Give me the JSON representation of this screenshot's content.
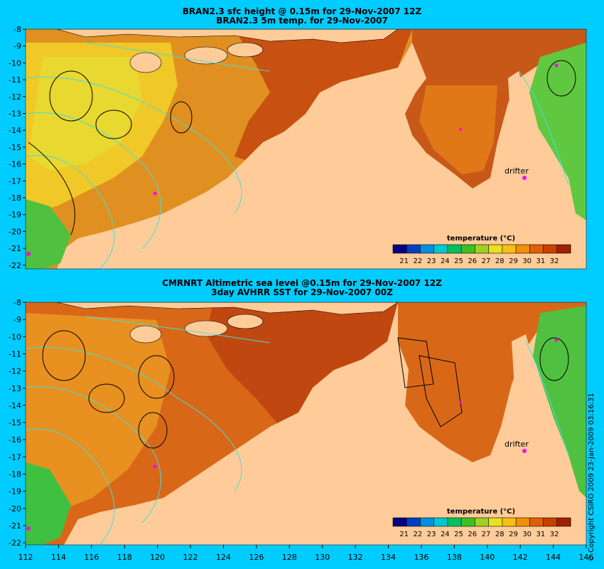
{
  "top_panel": {
    "title_line1": "BRAN2.3 sfc height @ 0.15m for 29-Nov-2007 12Z",
    "title_line2": "BRAN2.3 5m temp. for 29-Nov-2007",
    "drifter_label": "drifter",
    "legend_title": "temperature (°C)"
  },
  "bottom_panel": {
    "title_line1": "CMRNRT Altimetric sea level  @0.15m  for 29-Nov-2007 12Z",
    "title_line2": "3day AVHRR SST for 29-Nov-2007 00Z",
    "drifter_label": "drifter",
    "legend_title": "temperature (°C)"
  },
  "y_ticks": [
    "-8",
    "-9",
    "-10",
    "-11",
    "-12",
    "-13",
    "-14",
    "-15",
    "-16",
    "-17",
    "-18",
    "-19",
    "-20",
    "-21",
    "-22"
  ],
  "x_ticks": [
    "112",
    "114",
    "116",
    "118",
    "120",
    "122",
    "124",
    "126",
    "128",
    "130",
    "132",
    "134",
    "136",
    "138",
    "140",
    "142",
    "144",
    "146"
  ],
  "colorbar_ticks": [
    "21",
    "22",
    "23",
    "24",
    "25",
    "26",
    "27",
    "28",
    "29",
    "30",
    "31",
    "32"
  ],
  "colorbar_colors": [
    "#000080",
    "#0040c0",
    "#0090e0",
    "#00c8d0",
    "#00c060",
    "#40c020",
    "#a0d020",
    "#e8e020",
    "#f8c010",
    "#f09008",
    "#e06000",
    "#c84000",
    "#a02000"
  ],
  "copyright": "© Copyright CSIRO 2009   23-Jan-2009 03:16:31",
  "colors": {
    "background": "#00ccff",
    "land": "#ffcc99",
    "warm_sea": "#d05010",
    "mid_sea": "#f0a020",
    "cool_sea": "#e8d020",
    "coastal_green": "#40c040",
    "contour": "#40e0e0",
    "drifter": "#ff00ff"
  }
}
